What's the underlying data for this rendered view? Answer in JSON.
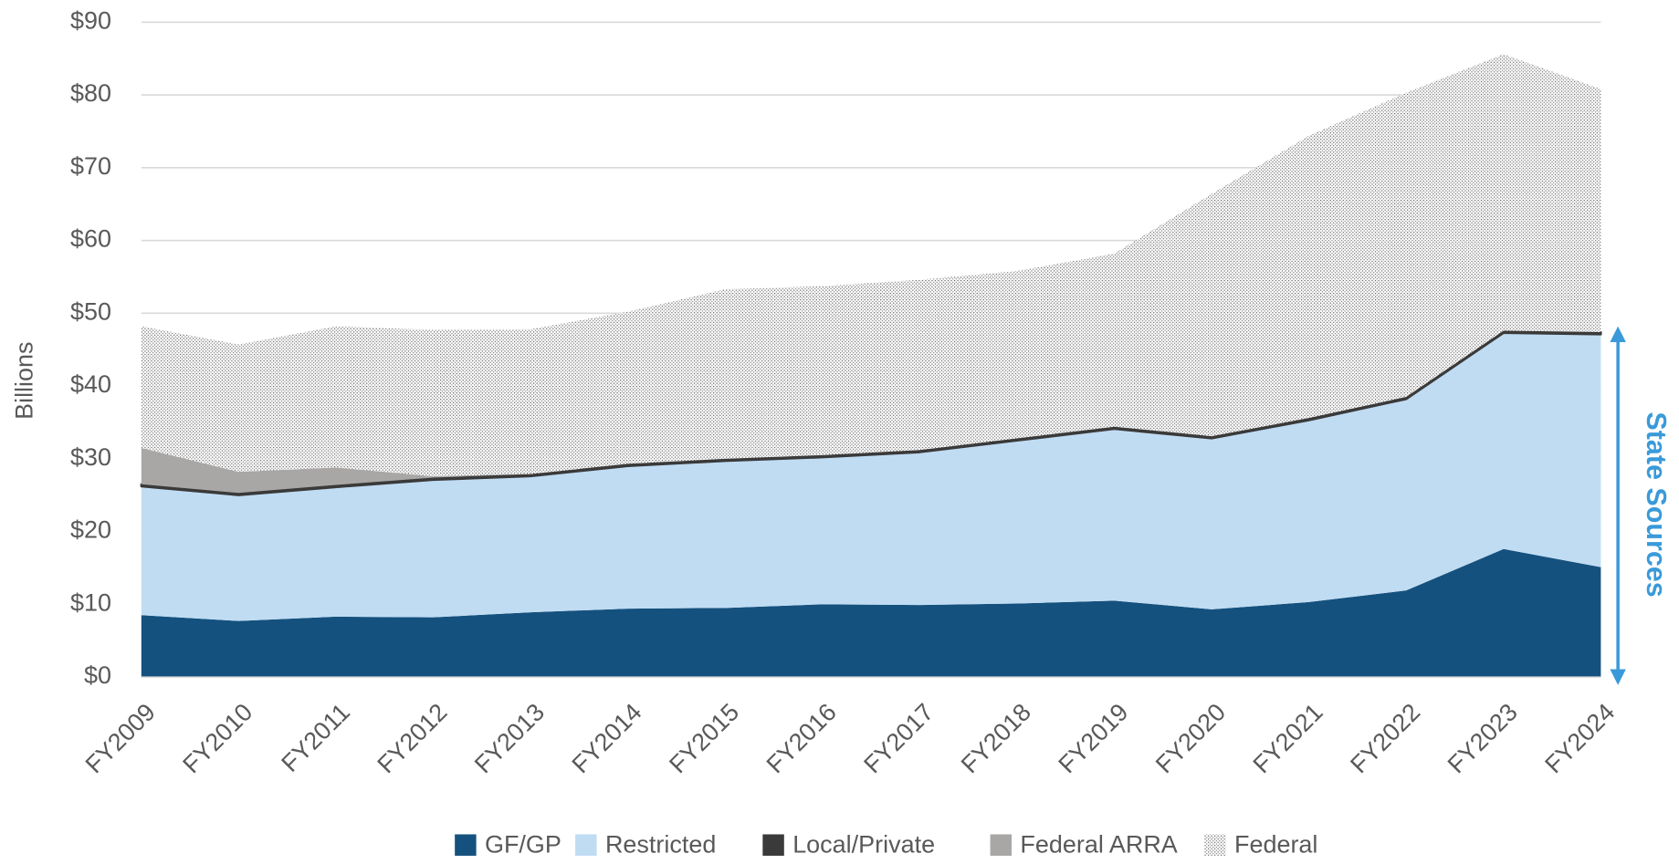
{
  "chart_data": {
    "type": "stacked_area",
    "ylabel": "Billions",
    "annotation": "State Sources",
    "categories": [
      "FY2009",
      "FY2010",
      "FY2011",
      "FY2012",
      "FY2013",
      "FY2014",
      "FY2015",
      "FY2016",
      "FY2017",
      "FY2018",
      "FY2019",
      "FY2020",
      "FY2021",
      "FY2022",
      "FY2023",
      "FY2024"
    ],
    "series": [
      {
        "name": "GF/GP",
        "color": "#15517e",
        "values": [
          8.5,
          7.7,
          8.3,
          8.2,
          8.9,
          9.4,
          9.5,
          10.0,
          9.9,
          10.1,
          10.5,
          9.3,
          10.3,
          11.9,
          17.6,
          15.1
        ]
      },
      {
        "name": "Restricted",
        "color": "#c0dcf3",
        "values": [
          17.7,
          17.3,
          17.8,
          18.9,
          18.7,
          19.6,
          20.2,
          20.2,
          21.0,
          22.4,
          23.6,
          23.5,
          25.0,
          26.3,
          29.7,
          32.0
        ]
      },
      {
        "name": "Local/Private",
        "color": "#3a3a3a",
        "values": [
          0.3,
          0.3,
          0.3,
          0.3,
          0.3,
          0.3,
          0.3,
          0.3,
          0.3,
          0.3,
          0.3,
          0.3,
          0.3,
          0.3,
          0.3,
          0.3
        ]
      },
      {
        "name": "Federal ARRA",
        "color": "#a9a7a6",
        "values": [
          5.0,
          2.9,
          2.4,
          0.2,
          0,
          0,
          0,
          0,
          0,
          0,
          0,
          0,
          0,
          0,
          0,
          0
        ]
      },
      {
        "name": "Federal",
        "color": "#555555",
        "pattern": "dotted",
        "values": [
          16.7,
          17.5,
          19.4,
          20.1,
          19.9,
          20.9,
          23.3,
          23.2,
          23.4,
          23.0,
          23.8,
          33.3,
          38.8,
          41.8,
          38.0,
          33.4
        ]
      }
    ],
    "ylim": [
      0,
      90
    ],
    "yticks": [
      {
        "value": 0,
        "label": "$0"
      },
      {
        "value": 10,
        "label": "$10"
      },
      {
        "value": 20,
        "label": "$20"
      },
      {
        "value": 30,
        "label": "$30"
      },
      {
        "value": 40,
        "label": "$40"
      },
      {
        "value": 50,
        "label": "$50"
      },
      {
        "value": 60,
        "label": "$60"
      },
      {
        "value": 70,
        "label": "$70"
      },
      {
        "value": 80,
        "label": "$80"
      },
      {
        "value": 90,
        "label": "$90"
      }
    ],
    "grid": true,
    "legend": "bottom"
  }
}
